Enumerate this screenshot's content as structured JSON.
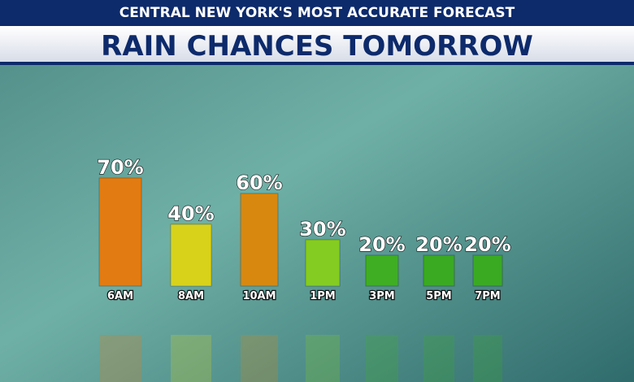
{
  "header": {
    "tagline": "CENTRAL NEW YORK'S MOST ACCURATE FORECAST"
  },
  "chart_data": {
    "type": "bar",
    "title": "RAIN CHANCES TOMORROW",
    "categories": [
      "6AM",
      "8AM",
      "10AM",
      "1PM",
      "3PM",
      "5PM",
      "7PM"
    ],
    "values": [
      70,
      40,
      60,
      30,
      20,
      20,
      20
    ],
    "value_labels": [
      "70%",
      "40%",
      "60%",
      "30%",
      "20%",
      "20%",
      "20%"
    ],
    "colors": [
      "#e27b12",
      "#d9d21a",
      "#d8880f",
      "#84cc22",
      "#3fae22",
      "#3aaa22",
      "#3aaa22"
    ]
  }
}
